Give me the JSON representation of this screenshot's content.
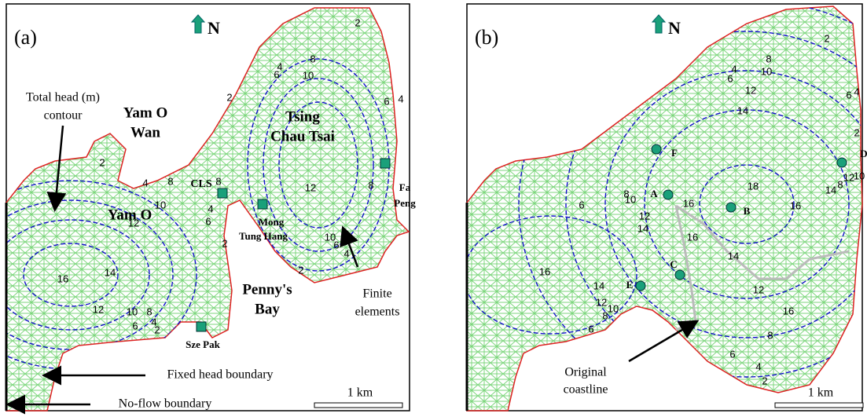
{
  "panels": [
    {
      "label": "(a)",
      "north": "N",
      "scale": "1 km",
      "texts": [
        "Total head (m)",
        "contour",
        "Yam O",
        "Wan",
        "Tsing",
        "Chau Tsai",
        "CLS",
        "Mong",
        "Tung Hang",
        "Fa",
        "Peng",
        "Yam O",
        "Penny's",
        "Bay",
        "Finite",
        "elements",
        "Sze Pak",
        "Fixed head  boundary",
        "No-flow boundary"
      ],
      "contour_labels": [
        2,
        4,
        8,
        10,
        12,
        16,
        14,
        12,
        10,
        8,
        6,
        4,
        2,
        8,
        4,
        6,
        2,
        12,
        10,
        8,
        6,
        4,
        2,
        8,
        6,
        4,
        10,
        6,
        4,
        2,
        2
      ]
    },
    {
      "label": "(b)",
      "north": "N",
      "scale": "1 km",
      "texts": [
        "F",
        "A",
        "B",
        "C",
        "E",
        "D",
        "Original",
        "coastline"
      ],
      "contour_labels": [
        2,
        8,
        10,
        4,
        6,
        12,
        14,
        6,
        4,
        2,
        16,
        18,
        16,
        16,
        14,
        12,
        10,
        8,
        10,
        8,
        6,
        12,
        14,
        16,
        14,
        12,
        10,
        8,
        6,
        12,
        14,
        16,
        8,
        6,
        4,
        2
      ]
    }
  ]
}
